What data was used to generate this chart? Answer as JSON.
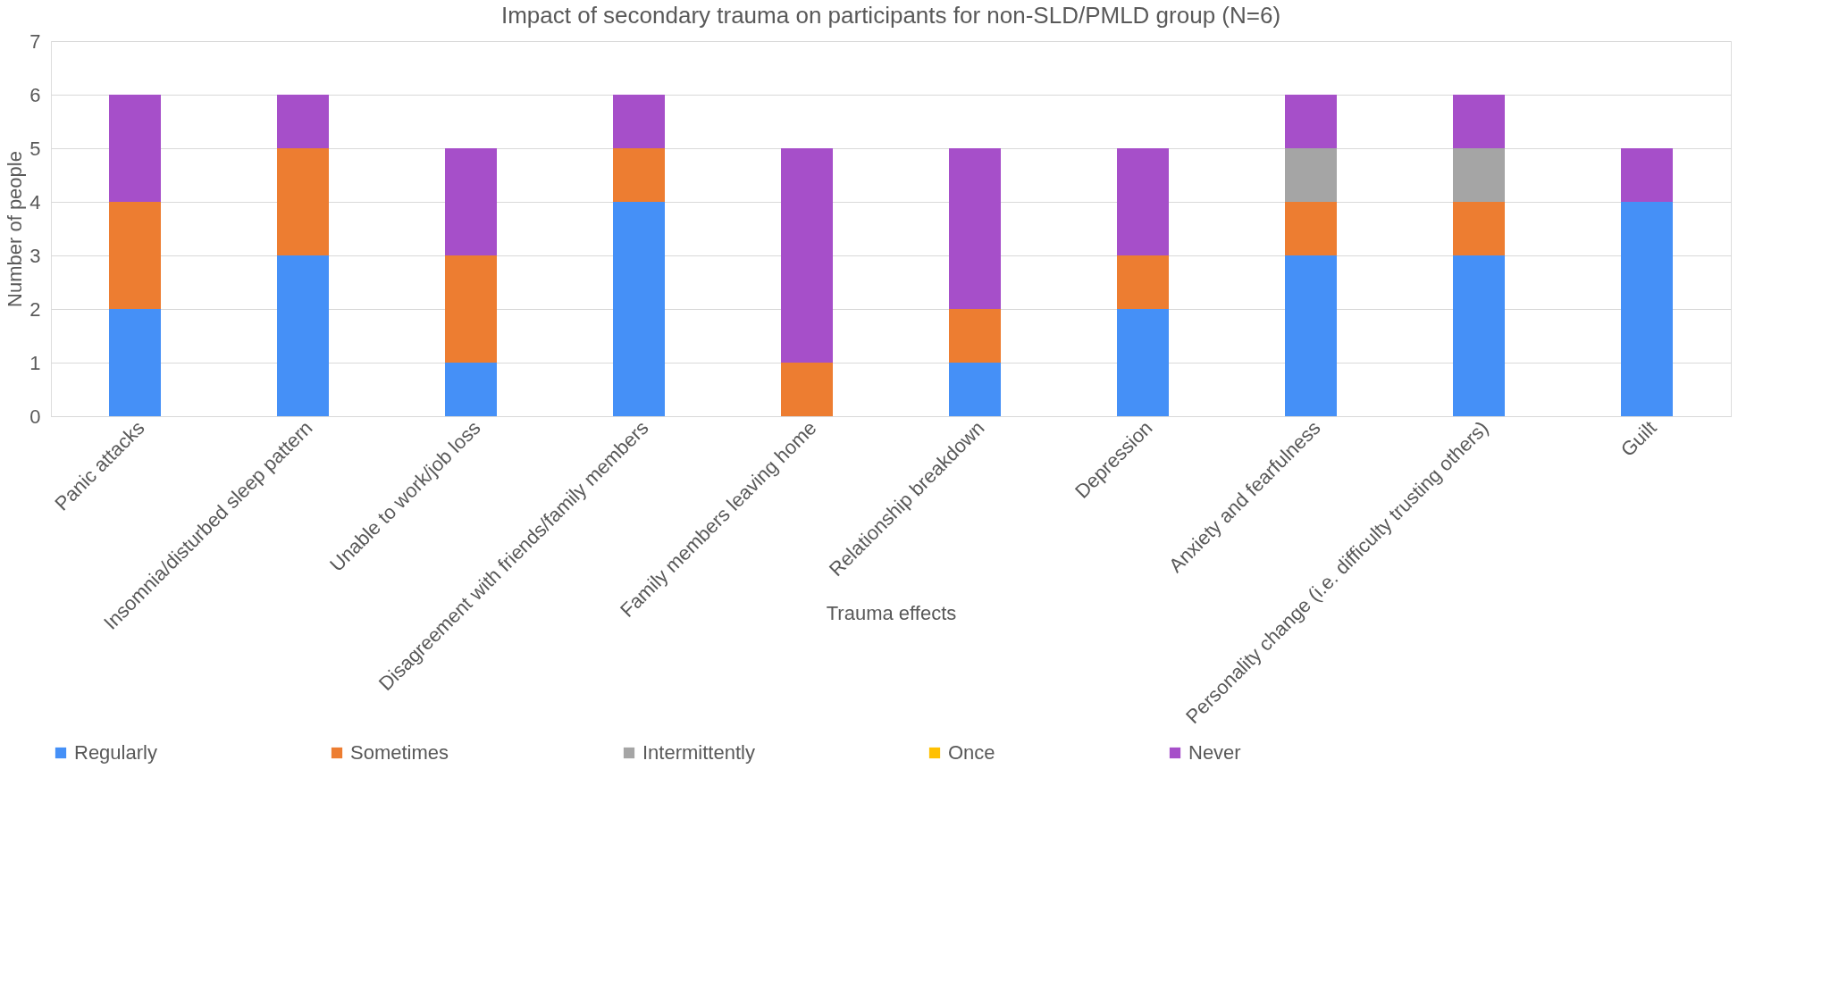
{
  "chart_data": {
    "type": "bar",
    "stacked": true,
    "title": "Impact of secondary trauma on participants for non-SLD/PMLD group (N=6)",
    "xlabel": "Trauma effects",
    "ylabel": "Number of people",
    "categories": [
      "Panic attacks",
      "Insomnia/disturbed sleep pattern",
      "Unable to work/job loss",
      "Disagreement with friends/family members",
      "Family members leaving home",
      "Relationship breakdown",
      "Depression",
      "Anxiety and fearfulness",
      "Personality change (i.e. difficulty trusting others)",
      "Guilt"
    ],
    "series": [
      {
        "name": "Regularly",
        "color": "#4590f7",
        "values": [
          2,
          3,
          1,
          4,
          0,
          1,
          2,
          3,
          3,
          4
        ]
      },
      {
        "name": "Sometimes",
        "color": "#ed7d31",
        "values": [
          2,
          2,
          2,
          1,
          1,
          1,
          1,
          1,
          1,
          0
        ]
      },
      {
        "name": "Intermittently",
        "color": "#a5a5a5",
        "values": [
          0,
          0,
          0,
          0,
          0,
          0,
          0,
          1,
          1,
          0
        ]
      },
      {
        "name": "Once",
        "color": "#ffc000",
        "values": [
          0,
          0,
          0,
          0,
          0,
          0,
          0,
          0,
          0,
          0
        ]
      },
      {
        "name": "Never",
        "color": "#a64fc9",
        "values": [
          2,
          1,
          2,
          1,
          4,
          3,
          2,
          1,
          1,
          1
        ]
      }
    ],
    "ylim": [
      0,
      7
    ],
    "yticks": [
      0,
      1,
      2,
      3,
      4,
      5,
      6,
      7
    ],
    "grid": "y",
    "legend": "bottom"
  }
}
